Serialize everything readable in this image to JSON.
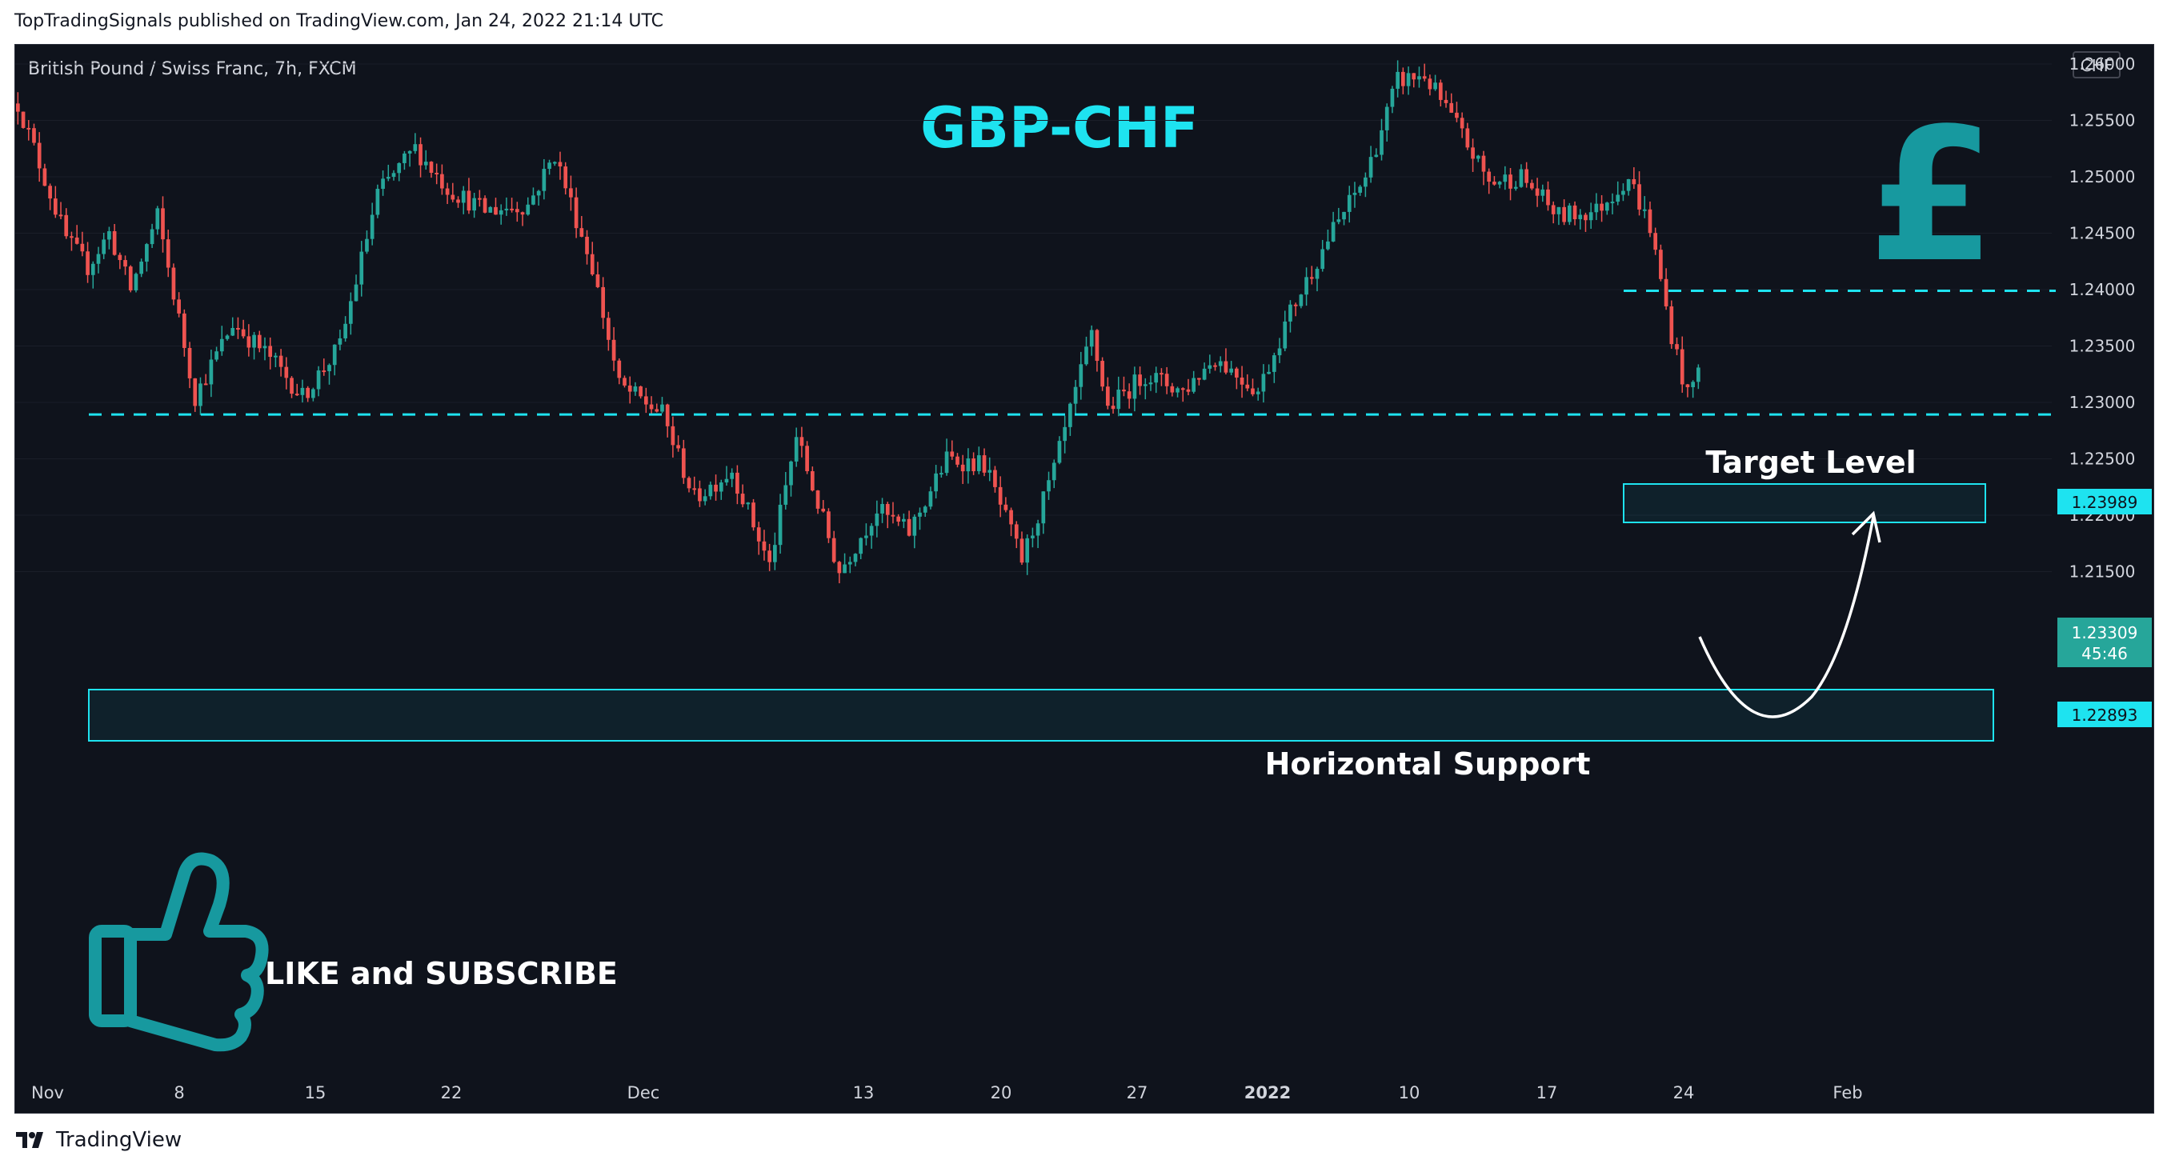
{
  "published": "TopTradingSignals published on TradingView.com, Jan 24, 2022 21:14 UTC",
  "brand": "TradingView",
  "colors": {
    "background": "#0f131c",
    "up": "#26a69a",
    "down": "#ef5350",
    "accent": "#1ee3f0",
    "icon": "#17999f"
  },
  "chart_data": {
    "type": "candlestick",
    "title": "British Pound / Swiss Franc, 7h, FXCM",
    "currency": "CHF",
    "headline": "GBP-CHF",
    "ylim": [
      1.211,
      1.2615
    ],
    "y_ticks": [
      "1.26000",
      "1.25500",
      "1.25000",
      "1.24500",
      "1.24000",
      "1.23500",
      "1.23000",
      "1.22500",
      "1.22000",
      "1.21500"
    ],
    "x_ticks": [
      {
        "label": "Nov",
        "bold": false
      },
      {
        "label": "8",
        "bold": false
      },
      {
        "label": "15",
        "bold": false
      },
      {
        "label": "22",
        "bold": false
      },
      {
        "label": "Dec",
        "bold": false
      },
      {
        "label": "13",
        "bold": false
      },
      {
        "label": "20",
        "bold": false
      },
      {
        "label": "27",
        "bold": false
      },
      {
        "label": "2022",
        "bold": true
      },
      {
        "label": "10",
        "bold": false
      },
      {
        "label": "17",
        "bold": false
      },
      {
        "label": "24",
        "bold": false
      },
      {
        "label": "Feb",
        "bold": false
      }
    ],
    "price_path": [
      {
        "t": 0,
        "v": 1.2565
      },
      {
        "t": 9,
        "v": 1.2445
      },
      {
        "t": 13,
        "v": 1.242
      },
      {
        "t": 17,
        "v": 1.245
      },
      {
        "t": 21,
        "v": 1.24
      },
      {
        "t": 26,
        "v": 1.2465
      },
      {
        "t": 33,
        "v": 1.2305
      },
      {
        "t": 40,
        "v": 1.237
      },
      {
        "t": 47,
        "v": 1.234
      },
      {
        "t": 53,
        "v": 1.2305
      },
      {
        "t": 60,
        "v": 1.235
      },
      {
        "t": 67,
        "v": 1.2485
      },
      {
        "t": 74,
        "v": 1.2525
      },
      {
        "t": 80,
        "v": 1.249
      },
      {
        "t": 87,
        "v": 1.247
      },
      {
        "t": 95,
        "v": 1.2475
      },
      {
        "t": 100,
        "v": 1.252
      },
      {
        "t": 107,
        "v": 1.242
      },
      {
        "t": 112,
        "v": 1.2315
      },
      {
        "t": 120,
        "v": 1.229
      },
      {
        "t": 126,
        "v": 1.2215
      },
      {
        "t": 133,
        "v": 1.224
      },
      {
        "t": 140,
        "v": 1.2155
      },
      {
        "t": 145,
        "v": 1.227
      },
      {
        "t": 153,
        "v": 1.215
      },
      {
        "t": 160,
        "v": 1.2205
      },
      {
        "t": 166,
        "v": 1.2185
      },
      {
        "t": 173,
        "v": 1.225
      },
      {
        "t": 180,
        "v": 1.2245
      },
      {
        "t": 187,
        "v": 1.216
      },
      {
        "t": 193,
        "v": 1.224
      },
      {
        "t": 200,
        "v": 1.236
      },
      {
        "t": 203,
        "v": 1.2295
      },
      {
        "t": 210,
        "v": 1.2325
      },
      {
        "t": 217,
        "v": 1.231
      },
      {
        "t": 223,
        "v": 1.234
      },
      {
        "t": 231,
        "v": 1.231
      },
      {
        "t": 237,
        "v": 1.238
      },
      {
        "t": 244,
        "v": 1.2445
      },
      {
        "t": 251,
        "v": 1.25
      },
      {
        "t": 257,
        "v": 1.2585
      },
      {
        "t": 262,
        "v": 1.259
      },
      {
        "t": 268,
        "v": 1.2545
      },
      {
        "t": 274,
        "v": 1.2495
      },
      {
        "t": 280,
        "v": 1.25
      },
      {
        "t": 287,
        "v": 1.2465
      },
      {
        "t": 294,
        "v": 1.247
      },
      {
        "t": 300,
        "v": 1.25
      },
      {
        "t": 304,
        "v": 1.2455
      },
      {
        "t": 308,
        "v": 1.236
      },
      {
        "t": 311,
        "v": 1.2305
      },
      {
        "t": 313,
        "v": 1.2331
      }
    ],
    "last_price": "1.23309",
    "countdown": "45:46",
    "target_label": "Target Level",
    "target_price": "1.23989",
    "target_value": 1.23989,
    "support_label": "Horizontal Support",
    "support_price": "1.22893",
    "support_value": 1.22893,
    "cta": "LIKE and SUBSCRIBE"
  }
}
